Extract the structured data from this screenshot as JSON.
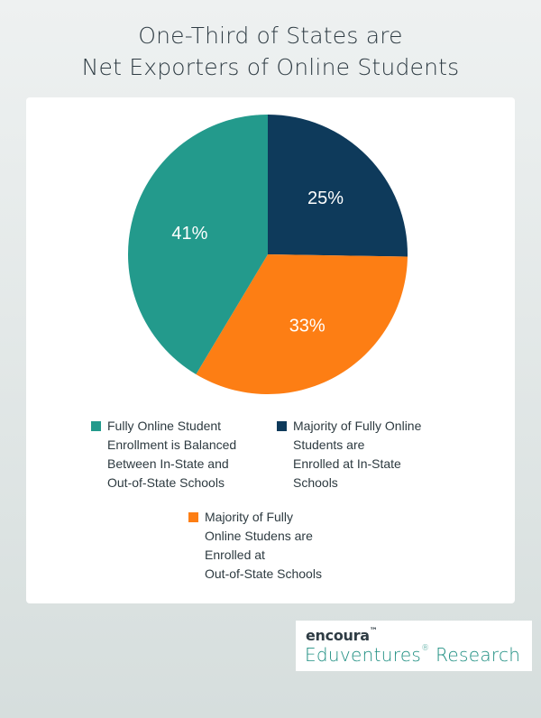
{
  "chart_data": {
    "type": "pie",
    "title_lines": [
      "One-Third of States are",
      "Net Exporters of Online Students"
    ],
    "slices": [
      {
        "label": "Majority of Fully Online Students are Enrolled at In-State Schools",
        "value": 25,
        "display": "25%",
        "color": "#0e3a5b"
      },
      {
        "label": "Majority of Fully Online Studens are Enrolled at Out-of-State Schools",
        "value": 33,
        "display": "33%",
        "color": "#fd7e14"
      },
      {
        "label": "Fully Online Student Enrollment is Balanced Between In-State and Out-of-State Schools",
        "value": 41,
        "display": "41%",
        "color": "#239a8c"
      }
    ],
    "legend": [
      {
        "lines": [
          "Fully Online Student",
          "Enrollment is Balanced",
          "Between In-State and",
          "Out-of-State Schools"
        ],
        "color": "#239a8c"
      },
      {
        "lines": [
          "Majority of Fully Online",
          "Students are",
          "Enrolled at In-State",
          "Schools"
        ],
        "color": "#0e3a5b"
      },
      {
        "lines": [
          "Majority of Fully",
          "Online Studens are",
          "Enrolled at",
          "Out-of-State Schools"
        ],
        "color": "#fd7e14"
      }
    ],
    "legend_position": "bottom"
  },
  "branding": {
    "brand": "encoura",
    "brand_mark": "™",
    "sub": "Eduventures",
    "sub_mark": "®",
    "sub_rest": " Research"
  }
}
